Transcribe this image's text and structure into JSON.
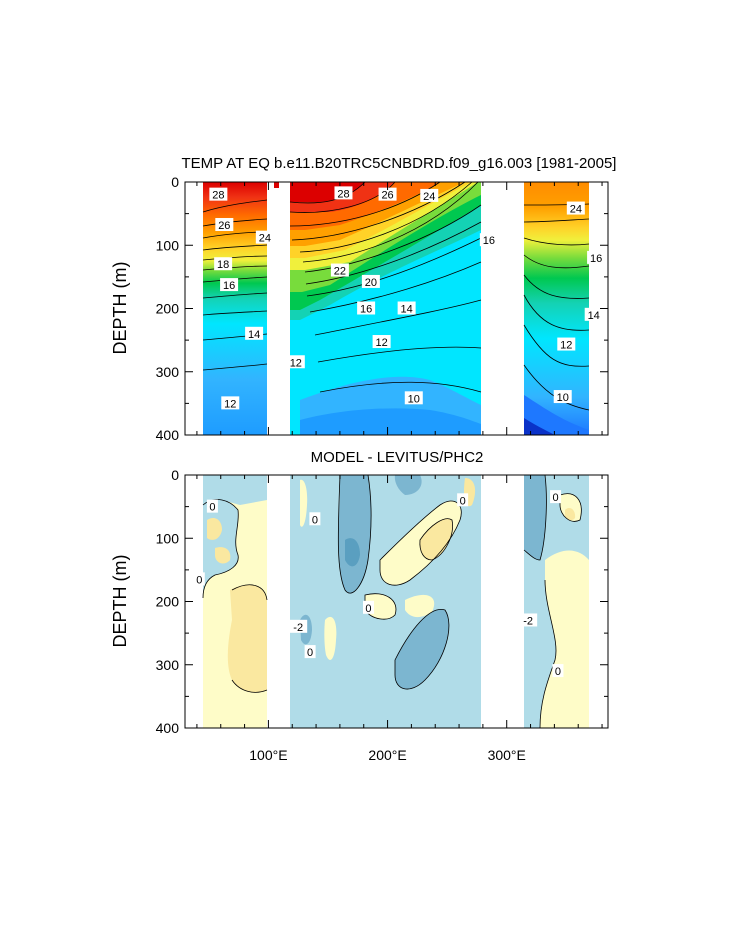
{
  "chart_data": [
    {
      "type": "heatmap",
      "title": "TEMP AT EQ b.e11.B20TRC5CNBDRD.f09_g16.003 [1981-2005]",
      "ylabel": "DEPTH (m)",
      "xlim": [
        30,
        385
      ],
      "ylim": [
        400,
        0
      ],
      "y_reversed": true,
      "yticks": [
        "0",
        "100",
        "200",
        "300",
        "400"
      ],
      "x_tick_values": [
        100,
        200,
        300
      ],
      "contour_units": "degC",
      "contour_labels": [
        {
          "text": "28",
          "lon": 58,
          "depth": 20
        },
        {
          "text": "26",
          "lon": 63,
          "depth": 68
        },
        {
          "text": "24",
          "lon": 97,
          "depth": 88
        },
        {
          "text": "18",
          "lon": 62,
          "depth": 130
        },
        {
          "text": "16",
          "lon": 67,
          "depth": 163
        },
        {
          "text": "14",
          "lon": 88,
          "depth": 240
        },
        {
          "text": "12",
          "lon": 68,
          "depth": 350
        },
        {
          "text": "12",
          "lon": 123,
          "depth": 285
        },
        {
          "text": "28",
          "lon": 163,
          "depth": 18
        },
        {
          "text": "26",
          "lon": 200,
          "depth": 20
        },
        {
          "text": "24",
          "lon": 235,
          "depth": 22
        },
        {
          "text": "22",
          "lon": 160,
          "depth": 140
        },
        {
          "text": "20",
          "lon": 186,
          "depth": 158
        },
        {
          "text": "16",
          "lon": 182,
          "depth": 200
        },
        {
          "text": "14",
          "lon": 216,
          "depth": 200
        },
        {
          "text": "12",
          "lon": 195,
          "depth": 253
        },
        {
          "text": "10",
          "lon": 222,
          "depth": 342
        },
        {
          "text": "16",
          "lon": 285,
          "depth": 92
        },
        {
          "text": "24",
          "lon": 358,
          "depth": 42
        },
        {
          "text": "16",
          "lon": 375,
          "depth": 120
        },
        {
          "text": "14",
          "lon": 373,
          "depth": 210
        },
        {
          "text": "12",
          "lon": 350,
          "depth": 257
        },
        {
          "text": "10",
          "lon": 347,
          "depth": 340
        }
      ],
      "colors": [
        "#0a32c8",
        "#1e78ff",
        "#32b4ff",
        "#00e6ff",
        "#14d2b4",
        "#00c850",
        "#78dc3c",
        "#f0f03c",
        "#ffd228",
        "#ffa000",
        "#ff6a00",
        "#f03214",
        "#dc0000"
      ]
    },
    {
      "type": "heatmap",
      "title": "MODEL - LEVITUS/PHC2",
      "ylabel": "DEPTH (m)",
      "xlim": [
        30,
        385
      ],
      "ylim": [
        400,
        0
      ],
      "y_reversed": true,
      "yticks": [
        "0",
        "100",
        "200",
        "300",
        "400"
      ],
      "x_tick_values": [
        100,
        200,
        300
      ],
      "xticks": [
        "100°E",
        "200°E",
        "300°E"
      ],
      "contour_labels": [
        {
          "text": "0",
          "lon": 53,
          "depth": 50
        },
        {
          "text": "0",
          "lon": 42,
          "depth": 165
        },
        {
          "text": "-2",
          "lon": 125,
          "depth": 240
        },
        {
          "text": "0",
          "lon": 135,
          "depth": 280
        },
        {
          "text": "0",
          "lon": 139,
          "depth": 70
        },
        {
          "text": "0",
          "lon": 184,
          "depth": 210
        },
        {
          "text": "0",
          "lon": 263,
          "depth": 40
        },
        {
          "text": "0",
          "lon": 341,
          "depth": 35
        },
        {
          "text": "-2",
          "lon": 318,
          "depth": 230
        },
        {
          "text": "0",
          "lon": 343,
          "depth": 310
        }
      ],
      "colors": [
        "#5a9fc0",
        "#7cb6d0",
        "#b0dce8",
        "#fefcc8",
        "#fae8a0",
        "#f6d47a"
      ]
    }
  ]
}
